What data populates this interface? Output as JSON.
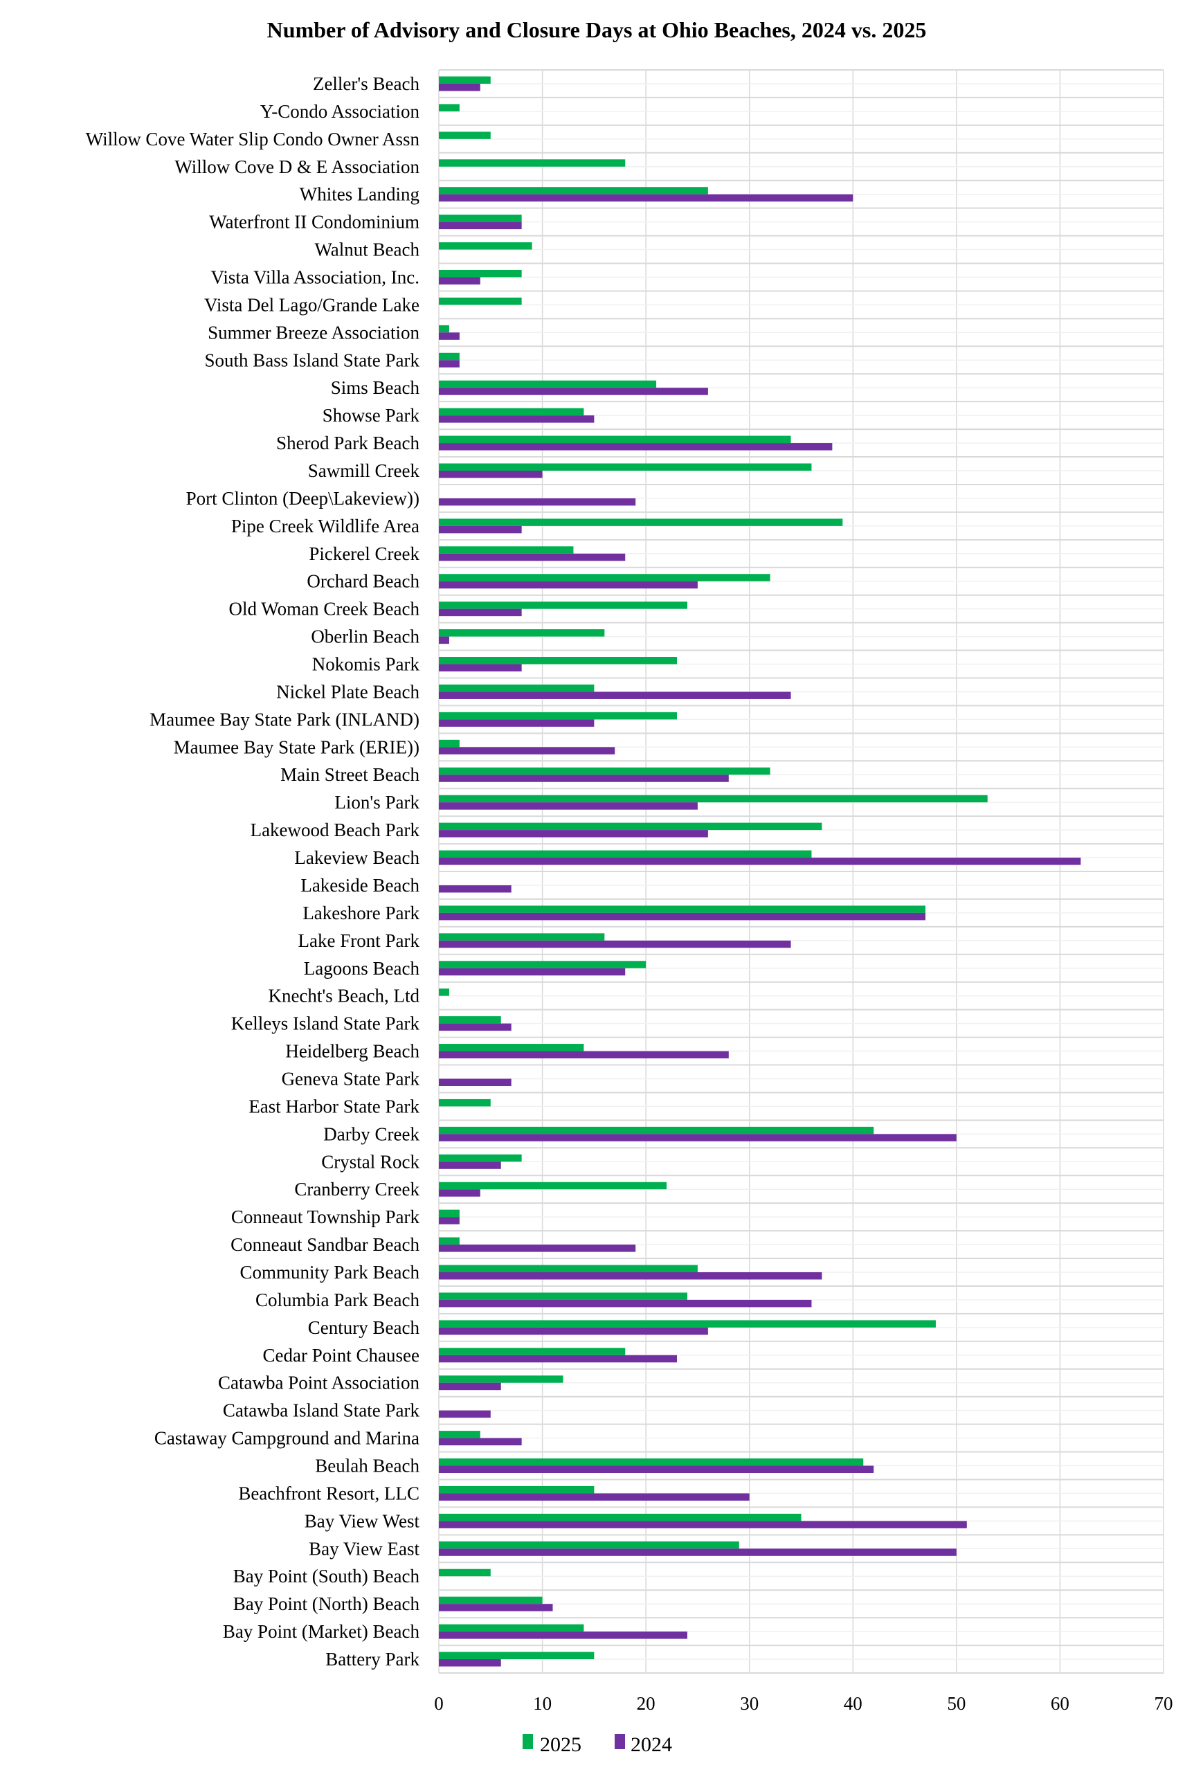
{
  "chart_data": {
    "type": "bar",
    "orientation": "horizontal",
    "title": "Number of Advisory and Closure Days at Ohio Beaches, 2024 vs. 2025",
    "xlabel": "",
    "ylabel": "",
    "xlim": [
      0,
      70
    ],
    "xticks": [
      0,
      10,
      20,
      30,
      40,
      50,
      60,
      70
    ],
    "grid": true,
    "legend_position": "bottom",
    "categories": [
      "Zeller's Beach",
      "Y-Condo Association",
      "Willow Cove Water Slip Condo Owner Assn",
      "Willow Cove D & E Association",
      "Whites Landing",
      "Waterfront II Condominium",
      "Walnut Beach",
      "Vista Villa Association, Inc.",
      "Vista Del Lago/Grande Lake",
      "Summer Breeze Association",
      "South Bass Island State Park",
      "Sims Beach",
      "Showse Park ",
      "Sherod Park Beach",
      "Sawmill Creek",
      "Port Clinton (Deep\\Lakeview))",
      "Pipe Creek Wildlife Area",
      "Pickerel Creek",
      "Orchard Beach",
      "Old Woman Creek Beach",
      "Oberlin Beach",
      "Nokomis Park",
      "Nickel Plate Beach",
      "Maumee Bay State Park (INLAND)",
      "Maumee Bay State Park (ERIE))",
      "Main Street Beach",
      "Lion's Park",
      "Lakewood Beach Park",
      "Lakeview Beach",
      "Lakeside Beach",
      "Lakeshore Park",
      "Lake Front Park",
      "Lagoons Beach",
      "Knecht's Beach, Ltd",
      "Kelleys Island State Park",
      "Heidelberg Beach",
      "Geneva State Park",
      "East Harbor State Park",
      "Darby Creek",
      "Crystal Rock",
      "Cranberry Creek",
      "Conneaut Township Park",
      "Conneaut Sandbar Beach",
      "Community Park Beach",
      "Columbia Park Beach",
      "Century Beach",
      "Cedar Point Chausee",
      "Catawba Point Association",
      "Catawba Island State Park ",
      "Castaway Campground and Marina",
      "Beulah Beach",
      "Beachfront Resort, LLC",
      "Bay View West",
      "Bay View East",
      "Bay Point (South) Beach",
      "Bay Point (North) Beach",
      "Bay Point (Market) Beach",
      "Battery Park"
    ],
    "series": [
      {
        "name": "2025",
        "color": "#00b050",
        "values": [
          5,
          2,
          5,
          18,
          26,
          8,
          9,
          8,
          8,
          1,
          2,
          21,
          14,
          34,
          36,
          0,
          39,
          13,
          32,
          24,
          16,
          23,
          15,
          23,
          2,
          32,
          53,
          37,
          36,
          0,
          47,
          16,
          20,
          1,
          6,
          14,
          0,
          5,
          42,
          8,
          22,
          2,
          2,
          25,
          24,
          48,
          18,
          12,
          0,
          4,
          41,
          15,
          35,
          29,
          5,
          10,
          14,
          15
        ]
      },
      {
        "name": "2024",
        "color": "#7030a0",
        "values": [
          4,
          0,
          0,
          0,
          40,
          8,
          0,
          4,
          0,
          2,
          2,
          26,
          15,
          38,
          10,
          19,
          8,
          18,
          25,
          8,
          1,
          8,
          34,
          15,
          17,
          28,
          25,
          26,
          62,
          7,
          47,
          34,
          18,
          0,
          7,
          28,
          7,
          0,
          50,
          6,
          4,
          2,
          19,
          37,
          36,
          26,
          23,
          6,
          5,
          8,
          42,
          30,
          51,
          50,
          0,
          11,
          24,
          6
        ]
      }
    ]
  }
}
